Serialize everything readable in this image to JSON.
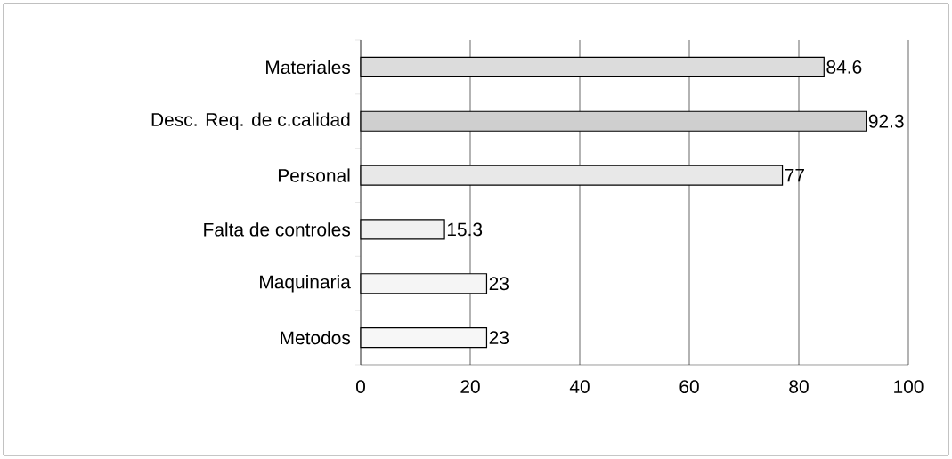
{
  "chart_data": {
    "type": "bar",
    "orientation": "horizontal",
    "categories": [
      "Materiales",
      "Desc. Req. de c.calidad",
      "Personal",
      "Falta de controles",
      "Maquinaria",
      "Metodos"
    ],
    "values": [
      84.6,
      92.3,
      77,
      15.3,
      23,
      23
    ],
    "colors": [
      "#dcdcdc",
      "#cfcfcf",
      "#e8e8e8",
      "#f0f0f0",
      "#f5f5f5",
      "#f7f7f7"
    ],
    "xlim": [
      0,
      100
    ],
    "xticks": [
      0,
      20,
      40,
      60,
      80,
      100
    ],
    "grid": "x",
    "data_labels": true
  }
}
